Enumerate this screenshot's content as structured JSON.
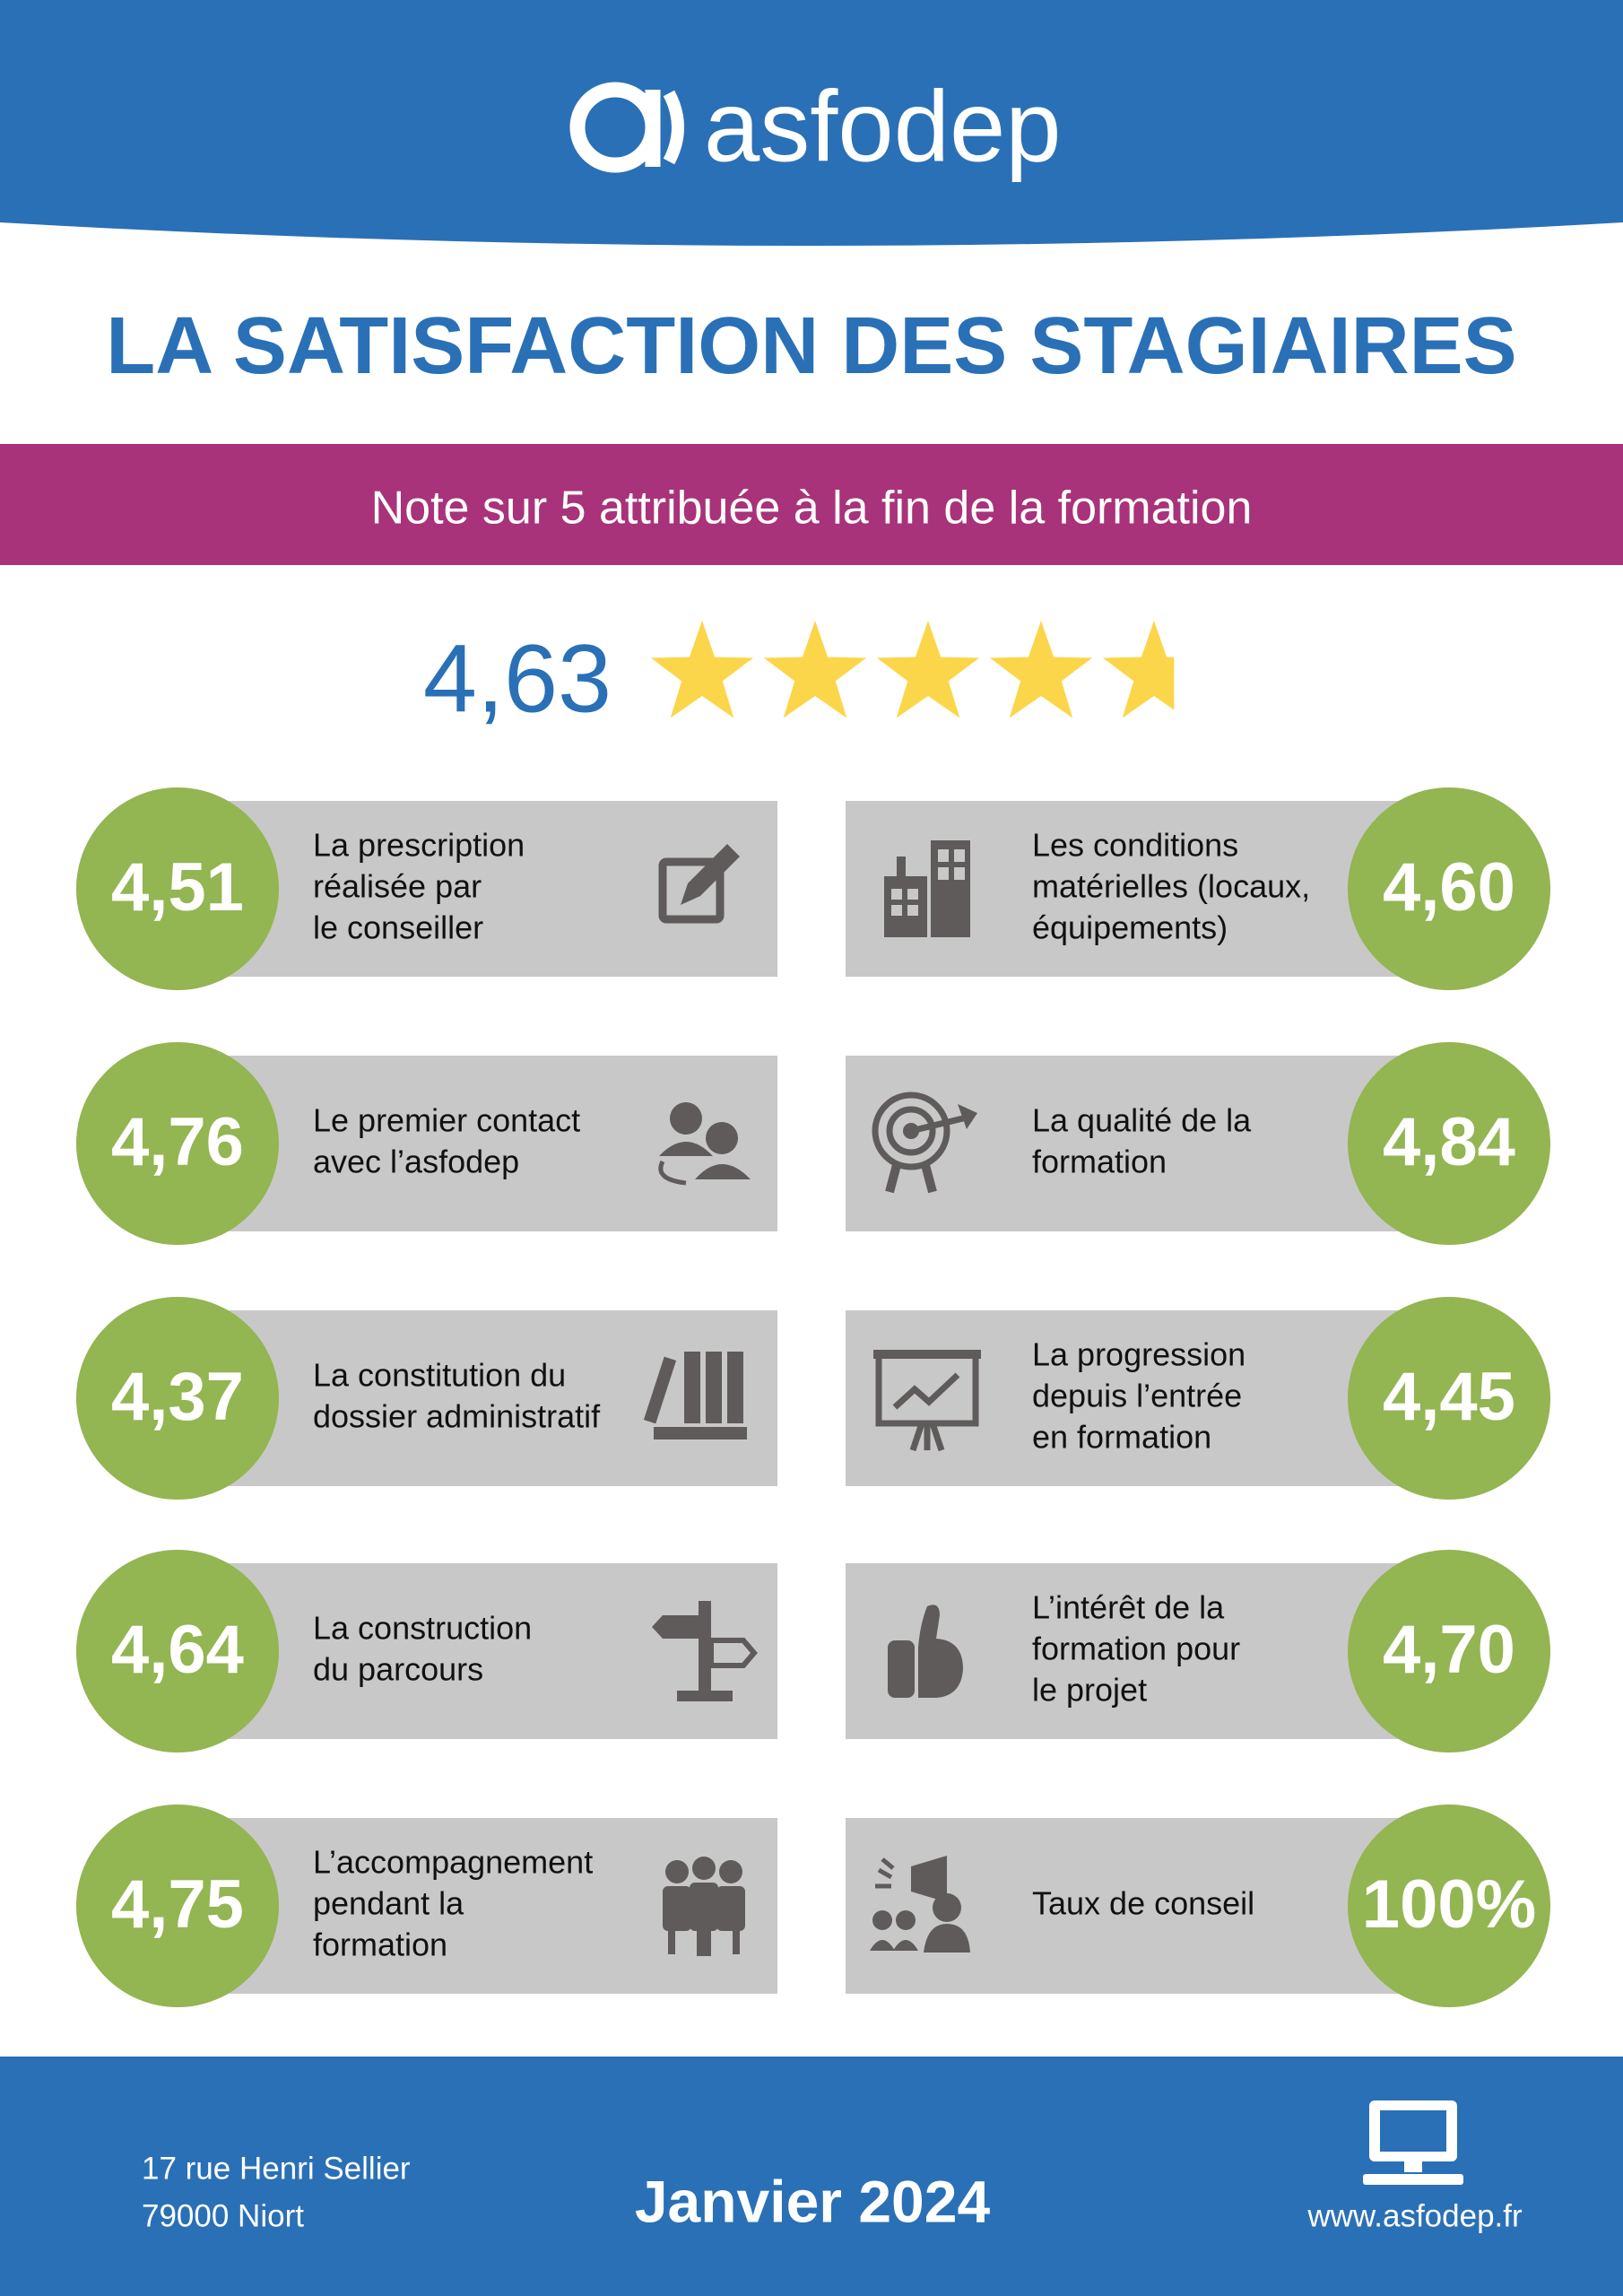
{
  "header": {
    "logo": "asfodep"
  },
  "title": "LA SATISFACTION DES STAGIAIRES",
  "subtitle": "Note sur 5 attribuée à la fin de la formation",
  "overall": {
    "value": 4.63,
    "label": "4,63"
  },
  "cards": {
    "left": [
      {
        "score": "4,51",
        "label": [
          "La prescription",
          "réalisée par",
          "le conseiller"
        ]
      },
      {
        "score": "4,76",
        "label": [
          "Le premier contact",
          "avec l’asfodep"
        ]
      },
      {
        "score": "4,37",
        "label": [
          "La constitution du",
          "dossier administratif"
        ]
      },
      {
        "score": "4,64",
        "label": [
          "La construction",
          "du parcours"
        ]
      },
      {
        "score": "4,75",
        "label": [
          "L’accompagnement",
          "pendant la",
          "formation"
        ]
      }
    ],
    "right": [
      {
        "score": "4,60",
        "label": [
          "Les conditions",
          "matérielles (locaux,",
          "équipements)"
        ]
      },
      {
        "score": "4,84",
        "label": [
          "La qualité de la",
          "formation"
        ]
      },
      {
        "score": "4,45",
        "label": [
          "La progression",
          "depuis l’entrée",
          "en formation"
        ]
      },
      {
        "score": "4,70",
        "label": [
          "L’intérêt de la",
          "formation pour",
          "le projet"
        ]
      },
      {
        "score": "100%",
        "label": [
          "Taux de conseil"
        ]
      }
    ]
  },
  "footer": {
    "address": [
      "17 rue Henri Sellier",
      "79000 Niort"
    ],
    "date": "Janvier 2024",
    "website": "www.asfodep.fr"
  }
}
